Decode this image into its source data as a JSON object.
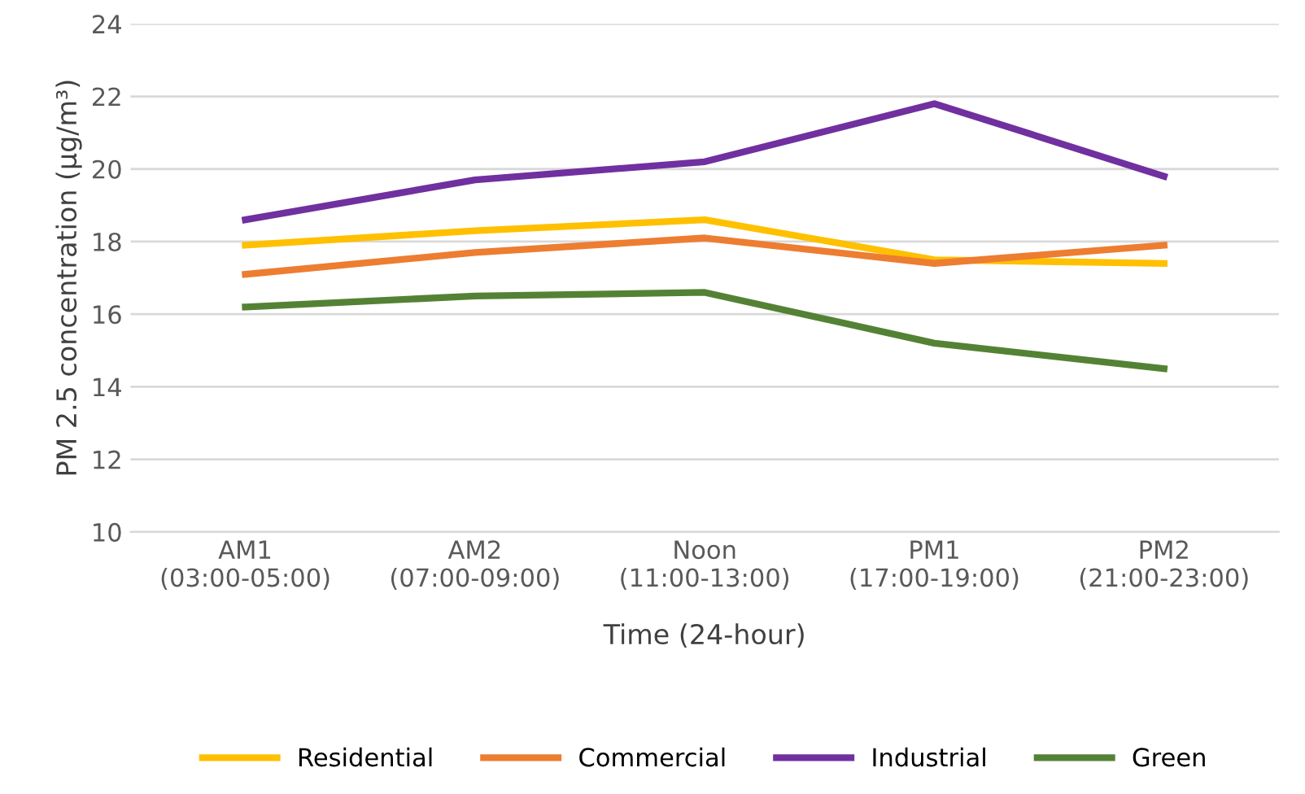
{
  "chart_data": {
    "type": "line",
    "xlabel": "Time (24-hour)",
    "ylabel": "PM 2.5 concentration (μg/m³)",
    "categories": [
      "AM1\n(03:00-05:00)",
      "AM2\n(07:00-09:00)",
      "Noon\n(11:00-13:00)",
      "PM1\n(17:00-19:00)",
      "PM2\n(21:00-23:00)"
    ],
    "series": [
      {
        "name": "Residential",
        "color": "#ffc000",
        "values": [
          17.9,
          18.3,
          18.6,
          17.5,
          17.4
        ]
      },
      {
        "name": "Commercial",
        "color": "#ed7d31",
        "values": [
          17.1,
          17.7,
          18.1,
          17.4,
          17.9
        ]
      },
      {
        "name": "Industrial",
        "color": "#7030a0",
        "values": [
          18.6,
          19.7,
          20.2,
          21.8,
          19.8
        ]
      },
      {
        "name": "Green",
        "color": "#548235",
        "values": [
          16.2,
          16.5,
          16.6,
          15.2,
          14.5
        ]
      }
    ],
    "ylim": [
      10,
      24
    ],
    "yticks": [
      10,
      12,
      14,
      16,
      18,
      20,
      22,
      24
    ],
    "grid": "y",
    "legend": "bottom",
    "marker": "none",
    "line_style": "solid"
  }
}
